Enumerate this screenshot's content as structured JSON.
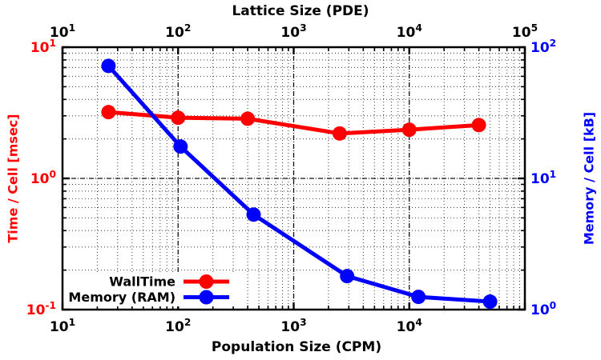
{
  "page": {
    "background": "#ffffff"
  },
  "chart_data": {
    "type": "line",
    "scales": {
      "x": "log",
      "y": "log"
    },
    "title_top": "Lattice Size (PDE)",
    "xlabel": "Population Size (CPM)",
    "ylabel_left": "Time / Cell [msec]",
    "ylabel_right": "Memory / Cell [kB]",
    "x_range": [
      10,
      100000
    ],
    "y_left_range": [
      0.1,
      10
    ],
    "y_right_range": [
      1,
      100
    ],
    "x_ticks_top": [
      10,
      100,
      1000,
      10000,
      100000
    ],
    "x_ticks_bottom": [
      10,
      100,
      1000,
      10000
    ],
    "y_ticks_left": [
      0.1,
      1,
      10
    ],
    "y_ticks_right": [
      1,
      10,
      100
    ],
    "grid": {
      "major": true,
      "minor": true,
      "style": "dotted"
    },
    "legend": {
      "position": "bottom-left",
      "entries": [
        "WallTime",
        "Memory (RAM)"
      ]
    },
    "series": [
      {
        "name": "WallTime",
        "axis": "left",
        "color": "#ff0000",
        "x": [
          25,
          100,
          400,
          2500,
          10000,
          40000
        ],
        "y": [
          3.2,
          2.9,
          2.85,
          2.2,
          2.35,
          2.55
        ]
      },
      {
        "name": "Memory (RAM)",
        "axis": "right",
        "color": "#0000ff",
        "x": [
          25,
          105,
          450,
          2900,
          12000,
          50000
        ],
        "y": [
          72,
          17.5,
          5.3,
          1.8,
          1.25,
          1.15
        ]
      }
    ],
    "colors": {
      "left_axis_labels": "#ff0000",
      "right_axis_labels": "#0000ff",
      "x_axis_labels": "#000000",
      "frame": "#000000",
      "background": "#ffffff"
    }
  }
}
